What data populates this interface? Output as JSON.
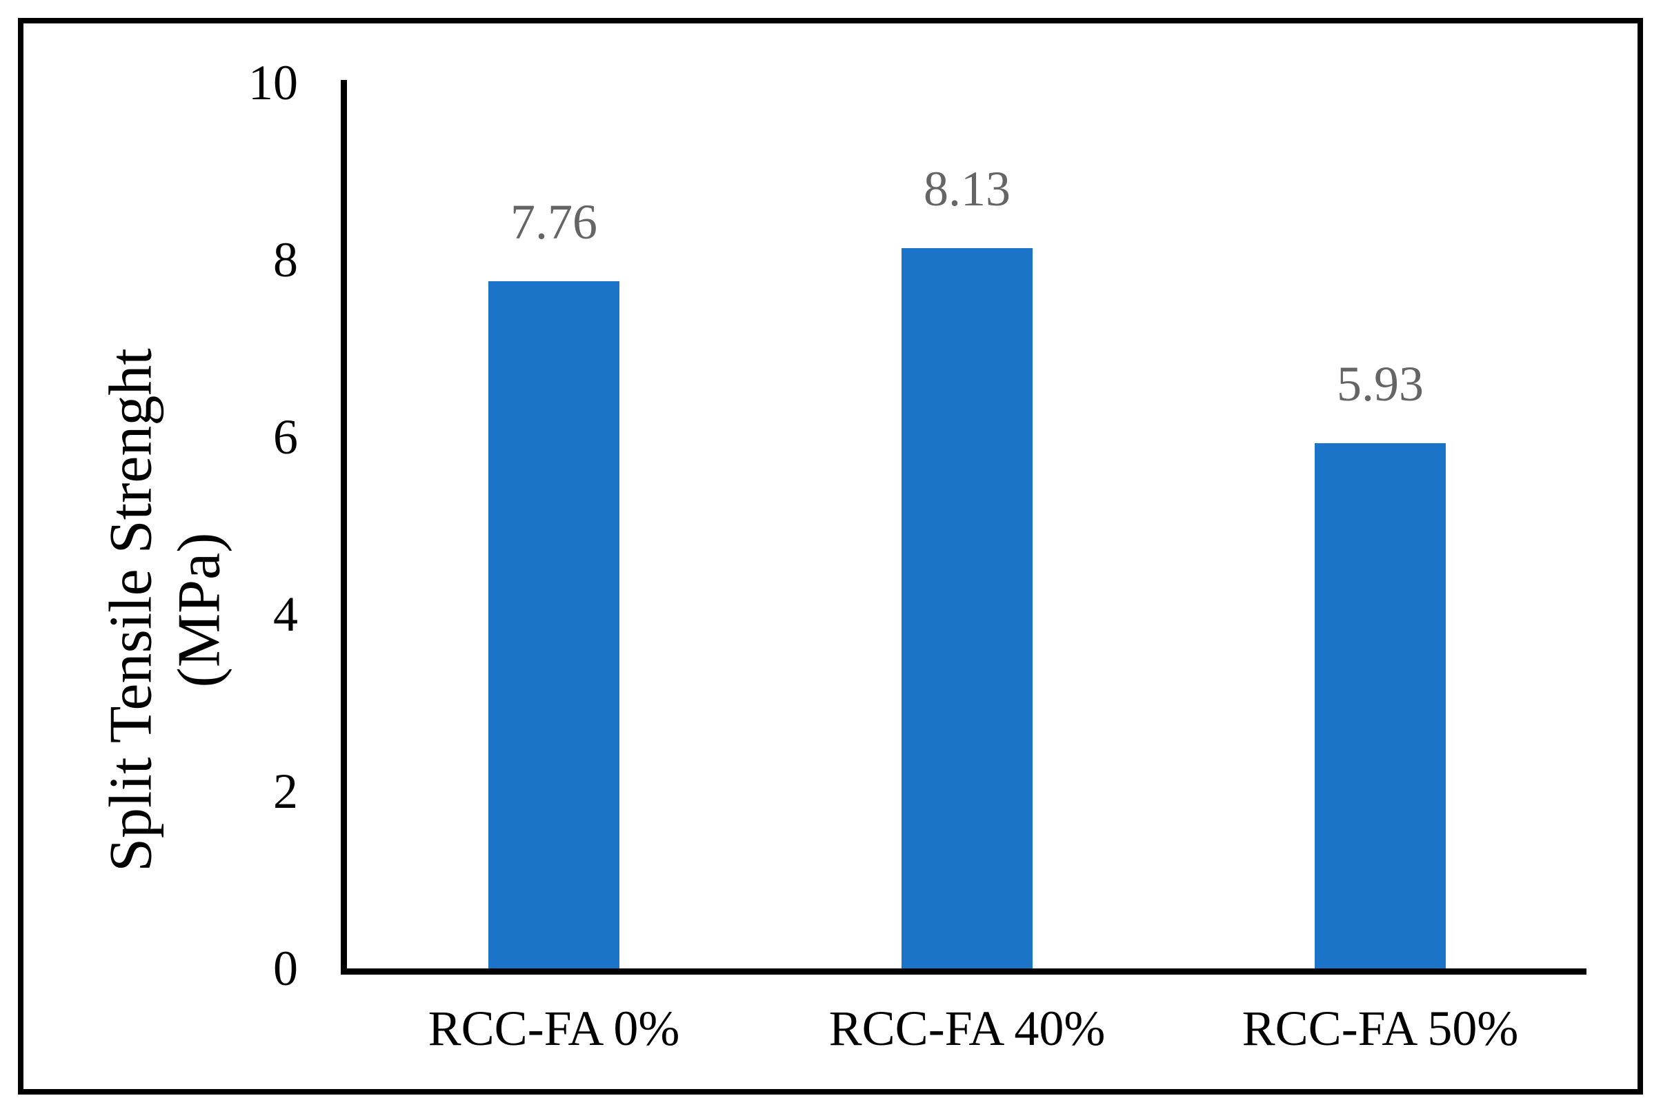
{
  "chart_data": {
    "type": "bar",
    "categories": [
      "RCC-FA 0%",
      "RCC-FA 40%",
      "RCC-FA 50%"
    ],
    "values": [
      7.76,
      8.13,
      5.93
    ],
    "data_labels": [
      "7.76",
      "8.13",
      "5.93"
    ],
    "ylabel_line1": "Split Tensile Strenght",
    "ylabel_line2": "(MPa)",
    "xlabel": "",
    "ylim": [
      0,
      10
    ],
    "yticks": [
      "0",
      "2",
      "4",
      "6",
      "8",
      "10"
    ],
    "ytick_values": [
      0,
      2,
      4,
      6,
      8,
      10
    ],
    "grid": false,
    "legend": "none",
    "colors": {
      "bar_fill": "#1B74C8",
      "data_label": "#656565",
      "axis": "#000000",
      "frame_border": "#000000",
      "background": "#FFFFFF"
    }
  }
}
